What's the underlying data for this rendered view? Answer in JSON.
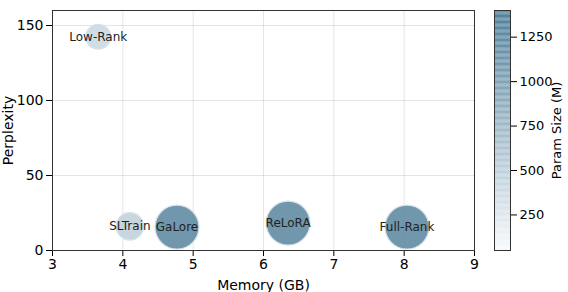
{
  "chart_data": {
    "type": "scatter",
    "x_label": "Memory (GB)",
    "y_label": "Perplexity",
    "labels": [
      "Low-Rank",
      "SLTrain",
      "GaLore",
      "ReLoRA",
      "Full-Rank"
    ],
    "x": [
      3.65,
      4.1,
      4.77,
      6.35,
      8.04
    ],
    "values": [
      142.5,
      16.1,
      15.6,
      18.3,
      15.6
    ],
    "param_size": [
      426,
      520,
      1339,
      1339,
      1339
    ],
    "xlim": [
      3,
      9
    ],
    "xticks": [
      3,
      4,
      5,
      6,
      7,
      8,
      9
    ],
    "ylim": [
      0,
      160
    ],
    "yticks": [
      0,
      50,
      100,
      150
    ],
    "grid": true,
    "colorbar": {
      "label": "Param Size (M)",
      "range": [
        50,
        1400
      ],
      "ticks": [
        250,
        500,
        750,
        1000,
        1250
      ]
    }
  }
}
